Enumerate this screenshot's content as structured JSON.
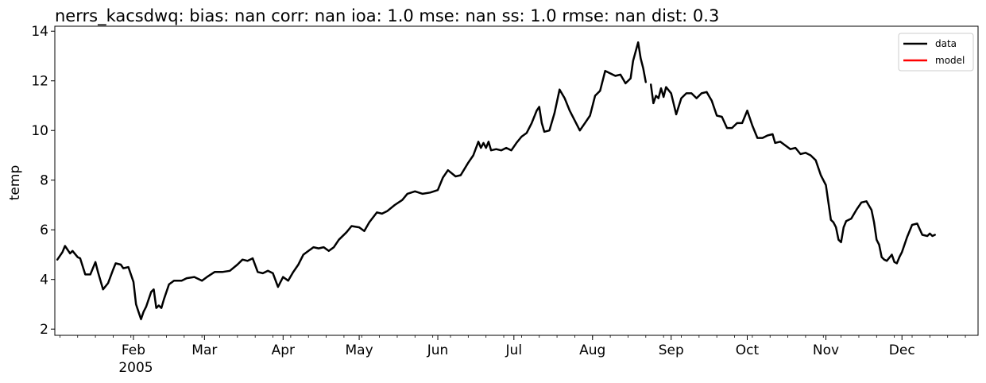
{
  "chart_data": {
    "type": "line",
    "title": "nerrs_kacsdwq: bias: nan  corr: nan  ioa: 1.0  mse: nan  ss: 1.0  rmse: nan  dist: 0.3",
    "ylabel": "temp",
    "xlabel": "",
    "xlim": [
      "2005-01-01",
      "2005-12-31"
    ],
    "ylim": [
      1.75,
      14.2
    ],
    "y_ticks": [
      2,
      4,
      6,
      8,
      10,
      12,
      14
    ],
    "x_ticks": [
      {
        "date": "2005-02-01",
        "label": "Feb"
      },
      {
        "date": "2005-03-01",
        "label": "Mar"
      },
      {
        "date": "2005-04-01",
        "label": "Apr"
      },
      {
        "date": "2005-05-01",
        "label": "May"
      },
      {
        "date": "2005-06-01",
        "label": "Jun"
      },
      {
        "date": "2005-07-01",
        "label": "Jul"
      },
      {
        "date": "2005-08-01",
        "label": "Aug"
      },
      {
        "date": "2005-09-01",
        "label": "Sep"
      },
      {
        "date": "2005-10-01",
        "label": "Oct"
      },
      {
        "date": "2005-11-01",
        "label": "Nov"
      },
      {
        "date": "2005-12-01",
        "label": "Dec"
      }
    ],
    "year_label": "2005",
    "grid": false,
    "legend_position": "top-right",
    "legend": [
      {
        "label": "data",
        "color": "#000000"
      },
      {
        "label": "model",
        "color": "#ff0000"
      }
    ],
    "series": [
      {
        "name": "data",
        "color": "#000000",
        "segments": [
          [
            [
              "2005-01-02",
              4.8
            ],
            [
              "2005-01-04",
              5.1
            ],
            [
              "2005-01-05",
              5.35
            ],
            [
              "2005-01-07",
              5.05
            ],
            [
              "2005-01-08",
              5.15
            ],
            [
              "2005-01-10",
              4.9
            ],
            [
              "2005-01-11",
              4.85
            ],
            [
              "2005-01-13",
              4.2
            ],
            [
              "2005-01-15",
              4.2
            ],
            [
              "2005-01-17",
              4.7
            ],
            [
              "2005-01-18",
              4.3
            ],
            [
              "2005-01-20",
              3.6
            ],
            [
              "2005-01-22",
              3.85
            ],
            [
              "2005-01-24",
              4.4
            ],
            [
              "2005-01-25",
              4.65
            ],
            [
              "2005-01-27",
              4.6
            ],
            [
              "2005-01-28",
              4.45
            ],
            [
              "2005-01-30",
              4.5
            ],
            [
              "2005-02-01",
              3.9
            ],
            [
              "2005-02-02",
              3.0
            ],
            [
              "2005-02-03",
              2.7
            ],
            [
              "2005-02-04",
              2.4
            ],
            [
              "2005-02-05",
              2.7
            ],
            [
              "2005-02-06",
              2.9
            ],
            [
              "2005-02-07",
              3.2
            ],
            [
              "2005-02-08",
              3.5
            ],
            [
              "2005-02-09",
              3.6
            ],
            [
              "2005-02-10",
              2.85
            ],
            [
              "2005-02-11",
              2.95
            ],
            [
              "2005-02-12",
              2.85
            ],
            [
              "2005-02-13",
              3.2
            ],
            [
              "2005-02-15",
              3.8
            ],
            [
              "2005-02-17",
              3.95
            ],
            [
              "2005-02-20",
              3.95
            ],
            [
              "2005-02-22",
              4.05
            ],
            [
              "2005-02-25",
              4.1
            ],
            [
              "2005-02-28",
              3.95
            ],
            [
              "2005-03-02",
              4.1
            ],
            [
              "2005-03-05",
              4.3
            ],
            [
              "2005-03-08",
              4.3
            ],
            [
              "2005-03-11",
              4.35
            ],
            [
              "2005-03-14",
              4.6
            ],
            [
              "2005-03-16",
              4.8
            ],
            [
              "2005-03-18",
              4.75
            ],
            [
              "2005-03-20",
              4.85
            ],
            [
              "2005-03-22",
              4.3
            ],
            [
              "2005-03-24",
              4.25
            ],
            [
              "2005-03-26",
              4.35
            ],
            [
              "2005-03-28",
              4.25
            ],
            [
              "2005-03-30",
              3.7
            ],
            [
              "2005-04-01",
              4.1
            ],
            [
              "2005-04-03",
              3.95
            ],
            [
              "2005-04-05",
              4.3
            ],
            [
              "2005-04-07",
              4.6
            ],
            [
              "2005-04-09",
              5.0
            ],
            [
              "2005-04-11",
              5.15
            ],
            [
              "2005-04-13",
              5.3
            ],
            [
              "2005-04-15",
              5.25
            ],
            [
              "2005-04-17",
              5.3
            ],
            [
              "2005-04-19",
              5.15
            ],
            [
              "2005-04-21",
              5.3
            ],
            [
              "2005-04-23",
              5.6
            ],
            [
              "2005-04-26",
              5.9
            ],
            [
              "2005-04-28",
              6.15
            ],
            [
              "2005-05-01",
              6.1
            ],
            [
              "2005-05-03",
              5.95
            ],
            [
              "2005-05-05",
              6.3
            ],
            [
              "2005-05-08",
              6.7
            ],
            [
              "2005-05-10",
              6.65
            ],
            [
              "2005-05-12",
              6.75
            ],
            [
              "2005-05-15",
              7.0
            ],
            [
              "2005-05-18",
              7.2
            ],
            [
              "2005-05-20",
              7.45
            ],
            [
              "2005-05-23",
              7.55
            ],
            [
              "2005-05-26",
              7.45
            ],
            [
              "2005-05-29",
              7.5
            ],
            [
              "2005-06-01",
              7.6
            ],
            [
              "2005-06-03",
              8.1
            ],
            [
              "2005-06-05",
              8.4
            ],
            [
              "2005-06-08",
              8.15
            ],
            [
              "2005-06-10",
              8.2
            ],
            [
              "2005-06-13",
              8.7
            ],
            [
              "2005-06-15",
              9.0
            ],
            [
              "2005-06-17",
              9.55
            ],
            [
              "2005-06-18",
              9.3
            ],
            [
              "2005-06-19",
              9.5
            ],
            [
              "2005-06-20",
              9.3
            ],
            [
              "2005-06-21",
              9.55
            ],
            [
              "2005-06-22",
              9.2
            ],
            [
              "2005-06-24",
              9.25
            ],
            [
              "2005-06-26",
              9.2
            ],
            [
              "2005-06-28",
              9.3
            ],
            [
              "2005-06-30",
              9.2
            ],
            [
              "2005-07-02",
              9.5
            ],
            [
              "2005-07-04",
              9.75
            ],
            [
              "2005-07-06",
              9.9
            ],
            [
              "2005-07-08",
              10.3
            ],
            [
              "2005-07-10",
              10.8
            ],
            [
              "2005-07-11",
              10.95
            ],
            [
              "2005-07-12",
              10.3
            ],
            [
              "2005-07-13",
              9.95
            ],
            [
              "2005-07-15",
              10.0
            ],
            [
              "2005-07-17",
              10.7
            ],
            [
              "2005-07-19",
              11.65
            ],
            [
              "2005-07-21",
              11.3
            ],
            [
              "2005-07-23",
              10.8
            ],
            [
              "2005-07-25",
              10.4
            ],
            [
              "2005-07-27",
              10.0
            ],
            [
              "2005-07-29",
              10.3
            ],
            [
              "2005-07-31",
              10.6
            ],
            [
              "2005-08-02",
              11.4
            ],
            [
              "2005-08-04",
              11.6
            ],
            [
              "2005-08-06",
              12.4
            ],
            [
              "2005-08-08",
              12.3
            ],
            [
              "2005-08-10",
              12.2
            ],
            [
              "2005-08-12",
              12.25
            ],
            [
              "2005-08-14",
              11.9
            ],
            [
              "2005-08-16",
              12.1
            ],
            [
              "2005-08-17",
              12.8
            ],
            [
              "2005-08-19",
              13.55
            ],
            [
              "2005-08-20",
              12.9
            ],
            [
              "2005-08-21",
              12.5
            ],
            [
              "2005-08-22",
              11.95
            ]
          ],
          [
            [
              "2005-08-24",
              11.85
            ],
            [
              "2005-08-25",
              11.1
            ],
            [
              "2005-08-26",
              11.4
            ],
            [
              "2005-08-27",
              11.3
            ],
            [
              "2005-08-28",
              11.7
            ],
            [
              "2005-08-29",
              11.35
            ],
            [
              "2005-08-30",
              11.75
            ],
            [
              "2005-09-01",
              11.5
            ],
            [
              "2005-09-03",
              10.65
            ],
            [
              "2005-09-05",
              11.3
            ],
            [
              "2005-09-07",
              11.5
            ],
            [
              "2005-09-09",
              11.5
            ],
            [
              "2005-09-11",
              11.3
            ],
            [
              "2005-09-13",
              11.5
            ],
            [
              "2005-09-15",
              11.55
            ],
            [
              "2005-09-17",
              11.2
            ],
            [
              "2005-09-19",
              10.6
            ],
            [
              "2005-09-21",
              10.55
            ],
            [
              "2005-09-23",
              10.1
            ],
            [
              "2005-09-25",
              10.1
            ],
            [
              "2005-09-27",
              10.3
            ],
            [
              "2005-09-29",
              10.3
            ],
            [
              "2005-10-01",
              10.8
            ],
            [
              "2005-10-03",
              10.2
            ],
            [
              "2005-10-05",
              9.7
            ],
            [
              "2005-10-07",
              9.7
            ],
            [
              "2005-10-09",
              9.8
            ],
            [
              "2005-10-11",
              9.85
            ],
            [
              "2005-10-12",
              9.5
            ],
            [
              "2005-10-14",
              9.55
            ],
            [
              "2005-10-16",
              9.4
            ],
            [
              "2005-10-18",
              9.25
            ],
            [
              "2005-10-20",
              9.3
            ],
            [
              "2005-10-22",
              9.05
            ],
            [
              "2005-10-24",
              9.1
            ],
            [
              "2005-10-26",
              9.0
            ],
            [
              "2005-10-28",
              8.8
            ],
            [
              "2005-10-30",
              8.2
            ],
            [
              "2005-11-01",
              7.8
            ],
            [
              "2005-11-03",
              6.4
            ],
            [
              "2005-11-04",
              6.3
            ],
            [
              "2005-11-05",
              6.1
            ],
            [
              "2005-11-06",
              5.6
            ],
            [
              "2005-11-07",
              5.5
            ],
            [
              "2005-11-08",
              6.1
            ],
            [
              "2005-11-09",
              6.35
            ],
            [
              "2005-11-11",
              6.45
            ],
            [
              "2005-11-13",
              6.8
            ],
            [
              "2005-11-15",
              7.1
            ],
            [
              "2005-11-17",
              7.15
            ],
            [
              "2005-11-19",
              6.8
            ],
            [
              "2005-11-20",
              6.3
            ],
            [
              "2005-11-21",
              5.6
            ],
            [
              "2005-11-22",
              5.4
            ],
            [
              "2005-11-23",
              4.9
            ],
            [
              "2005-11-24",
              4.8
            ],
            [
              "2005-11-25",
              4.75
            ],
            [
              "2005-11-27",
              5.0
            ],
            [
              "2005-11-28",
              4.7
            ],
            [
              "2005-11-29",
              4.65
            ],
            [
              "2005-11-30",
              4.9
            ],
            [
              "2005-12-01",
              5.1
            ],
            [
              "2005-12-03",
              5.7
            ],
            [
              "2005-12-05",
              6.2
            ],
            [
              "2005-12-07",
              6.25
            ],
            [
              "2005-12-09",
              5.8
            ],
            [
              "2005-12-11",
              5.75
            ],
            [
              "2005-12-12",
              5.85
            ],
            [
              "2005-12-13",
              5.75
            ],
            [
              "2005-12-14",
              5.8
            ]
          ]
        ]
      },
      {
        "name": "model",
        "color": "#ff0000",
        "segments": []
      }
    ]
  }
}
